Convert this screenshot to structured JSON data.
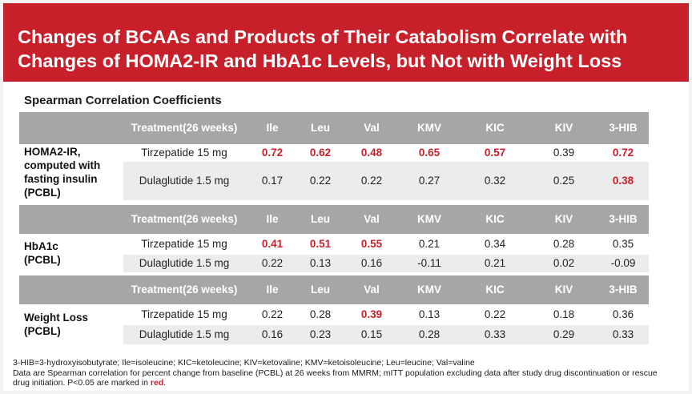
{
  "title": {
    "line1": "Changes of BCAAs and Products of Their Catabolism Correlate with",
    "line2": "Changes of HOMA2-IR and HbA1c Levels, but Not with Weight Loss"
  },
  "subheading": "Spearman Correlation Coefficients",
  "columns": {
    "treatment_line1": "Treatment",
    "treatment_line2": "(26 weeks)",
    "metabolites": [
      "Ile",
      "Leu",
      "Val",
      "KMV",
      "KIC",
      "KIV",
      "3-HIB"
    ]
  },
  "sections": [
    {
      "label_lines": [
        "HOMA2-IR,",
        "computed with",
        "fasting insulin",
        "(PCBL)"
      ],
      "rows": [
        {
          "treatment": "Tirzepatide 15 mg",
          "values": [
            "0.72",
            "0.62",
            "0.48",
            "0.65",
            "0.57",
            "0.39",
            "0.72"
          ],
          "significant": [
            true,
            true,
            true,
            true,
            true,
            false,
            true
          ]
        },
        {
          "treatment": "Dulaglutide 1.5 mg",
          "values": [
            "0.17",
            "0.22",
            "0.22",
            "0.27",
            "0.32",
            "0.25",
            "0.38"
          ],
          "significant": [
            false,
            false,
            false,
            false,
            false,
            false,
            true
          ]
        }
      ]
    },
    {
      "label_lines": [
        "HbA1c",
        "(PCBL)"
      ],
      "rows": [
        {
          "treatment": "Tirzepatide 15 mg",
          "values": [
            "0.41",
            "0.51",
            "0.55",
            "0.21",
            "0.34",
            "0.28",
            "0.35"
          ],
          "significant": [
            true,
            true,
            true,
            false,
            false,
            false,
            false
          ]
        },
        {
          "treatment": "Dulaglutide 1.5 mg",
          "values": [
            "0.22",
            "0.13",
            "0.16",
            "-0.11",
            "0.21",
            "0.02",
            "-0.09"
          ],
          "significant": [
            false,
            false,
            false,
            false,
            false,
            false,
            false
          ]
        }
      ]
    },
    {
      "label_lines": [
        "Weight Loss",
        "(PCBL)"
      ],
      "rows": [
        {
          "treatment": "Tirzepatide 15 mg",
          "values": [
            "0.22",
            "0.28",
            "0.39",
            "0.13",
            "0.22",
            "0.18",
            "0.36"
          ],
          "significant": [
            false,
            false,
            true,
            false,
            false,
            false,
            false
          ]
        },
        {
          "treatment": "Dulaglutide 1.5 mg",
          "values": [
            "0.16",
            "0.23",
            "0.15",
            "0.28",
            "0.33",
            "0.29",
            "0.33"
          ],
          "significant": [
            false,
            false,
            false,
            false,
            false,
            false,
            false
          ]
        }
      ]
    }
  ],
  "footnote": {
    "line1": "3-HIB=3-hydroxyisobutyrate; Ile=isoleucine; KIC=ketoleucine; KIV=ketovaline; KMV=ketoisoleucine; Leu=leucine; Val=valine",
    "line2": "Data are Spearman correlation for percent change from baseline (PCBL) at 26 weeks from MMRM; mITT population excluding data after study drug discontinuation or rescue",
    "line3_prefix": "drug initiation. P<0.05 are marked in ",
    "line3_red": "red",
    "line3_suffix": "."
  },
  "colors": {
    "title_bar": "#c8202a",
    "header_row": "#a6a6a6",
    "alt_row": "#ececec",
    "significant": "#c8202a"
  }
}
